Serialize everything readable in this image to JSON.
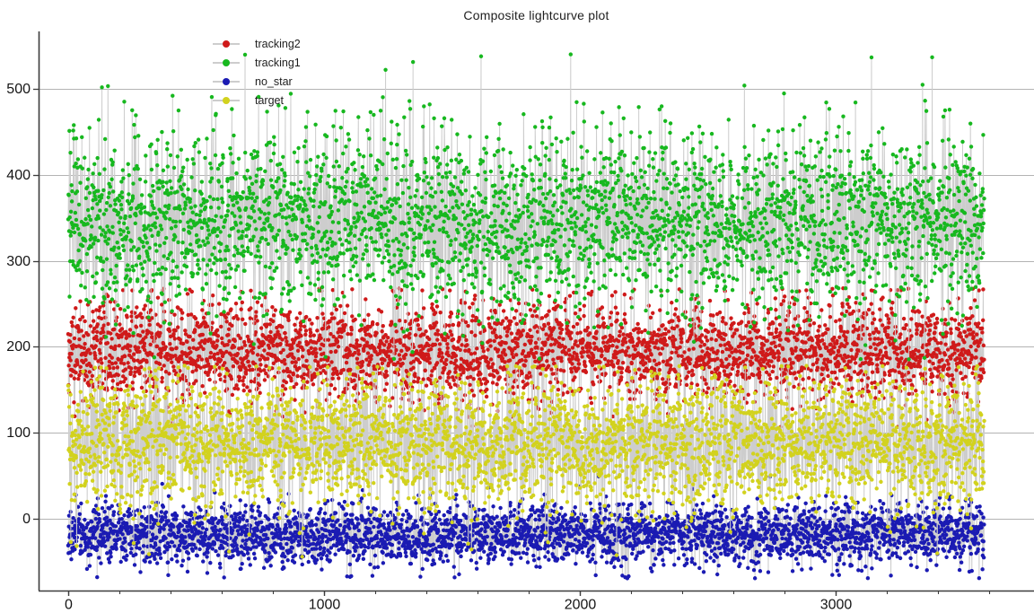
{
  "figure": {
    "background": "#ffffff"
  },
  "chart_data": {
    "type": "scatter",
    "title": "Composite lightcurve plot",
    "xlabel": "",
    "ylabel": "",
    "marker_style": "dot-with-connecting-line",
    "grid": true,
    "legend_position": "top-left-inside",
    "xlim": [
      -116,
      3775
    ],
    "ylim": [
      -84,
      567
    ],
    "x_major_ticks": [
      0,
      1000,
      2000,
      3000
    ],
    "x_minor_tick_step": 200,
    "x_minor_tick_max": 3600,
    "y_ticks": [
      0,
      100,
      200,
      300,
      400,
      500
    ],
    "x_data_range": [
      0,
      3580
    ],
    "points_per_series": 3500,
    "random_seed": 1337,
    "outlier_fraction": 0.015,
    "outlier_scale": 1.9,
    "connecting_line_color": "#cdcdcd",
    "grid_color": "#b3b3b3",
    "axis_color": "#3c3c3c",
    "tick_label_color": "#151515",
    "title_color": "#1f1f1f",
    "series": [
      {
        "name": "tracking2",
        "color": "#cf1a1a",
        "mean": 195,
        "std": 29,
        "min": 105,
        "max": 268
      },
      {
        "name": "tracking1",
        "color": "#17b81f",
        "mean": 345,
        "std": 51,
        "min": 185,
        "max": 542
      },
      {
        "name": "no_star",
        "color": "#1b1bb3",
        "mean": -18,
        "std": 17,
        "min": -70,
        "max": 50
      },
      {
        "name": "target",
        "color": "#d2d21e",
        "mean": 87,
        "std": 38,
        "min": -46,
        "max": 178
      }
    ]
  }
}
